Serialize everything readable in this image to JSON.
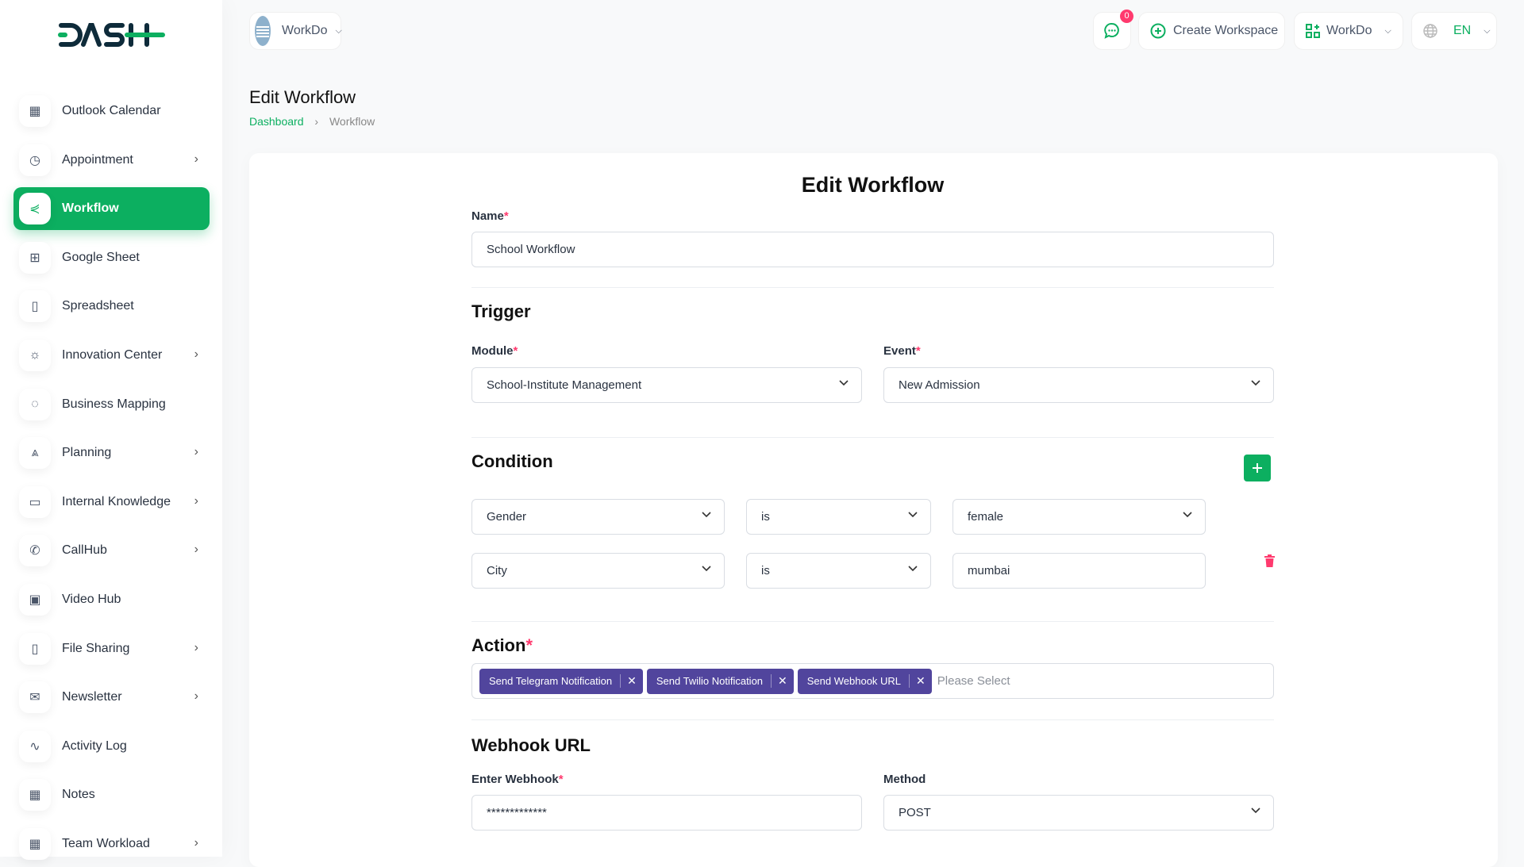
{
  "brand": {
    "logo_text": "DASH",
    "accent": "#0caf60"
  },
  "header": {
    "workspace": "WorkDo",
    "notification_count": "0",
    "create_workspace": "Create Workspace",
    "company": "WorkDo",
    "language": "EN"
  },
  "sidebar": {
    "items": [
      {
        "label": "Outlook Calendar",
        "icon": "calendar-icon",
        "chev": false
      },
      {
        "label": "Appointment",
        "icon": "calendar-clock-icon",
        "chev": true
      },
      {
        "label": "Workflow",
        "icon": "workflow-icon",
        "chev": false,
        "active": true
      },
      {
        "label": "Google Sheet",
        "icon": "table-icon",
        "chev": false
      },
      {
        "label": "Spreadsheet",
        "icon": "file-icon",
        "chev": false
      },
      {
        "label": "Innovation Center",
        "icon": "bulb-icon",
        "chev": true
      },
      {
        "label": "Business Mapping",
        "icon": "dashed-circle-icon",
        "chev": false
      },
      {
        "label": "Planning",
        "icon": "cone-icon",
        "chev": true
      },
      {
        "label": "Internal Knowledge",
        "icon": "book-icon",
        "chev": true
      },
      {
        "label": "CallHub",
        "icon": "phone-icon",
        "chev": true
      },
      {
        "label": "Video Hub",
        "icon": "video-icon",
        "chev": false
      },
      {
        "label": "File Sharing",
        "icon": "file-icon",
        "chev": true
      },
      {
        "label": "Newsletter",
        "icon": "mail-icon",
        "chev": true
      },
      {
        "label": "Activity Log",
        "icon": "activity-icon",
        "chev": false
      },
      {
        "label": "Notes",
        "icon": "calendar-icon",
        "chev": false
      },
      {
        "label": "Team Workload",
        "icon": "calendar-icon",
        "chev": true
      }
    ]
  },
  "page": {
    "title": "Edit Workflow",
    "breadcrumb": [
      "Dashboard",
      "Workflow"
    ]
  },
  "form": {
    "heading": "Edit Workflow",
    "name_label": "Name",
    "name_value": "School Workflow",
    "trigger": "Trigger",
    "module_label": "Module",
    "module_value": "School-Institute Management",
    "event_label": "Event",
    "event_value": "New Admission",
    "condition": "Condition",
    "conditions": [
      {
        "field": "Gender",
        "op": "is",
        "value": "female"
      },
      {
        "field": "City",
        "op": "is",
        "value": "mumbai"
      }
    ],
    "action": "Action",
    "actions": [
      "Send Telegram Notification",
      "Send Twilio Notification",
      "Send Webhook URL"
    ],
    "action_placeholder": "Please Select",
    "webhook": "Webhook URL",
    "webhook_label": "Enter Webhook",
    "webhook_value": "*************",
    "method_label": "Method",
    "method_value": "POST"
  }
}
